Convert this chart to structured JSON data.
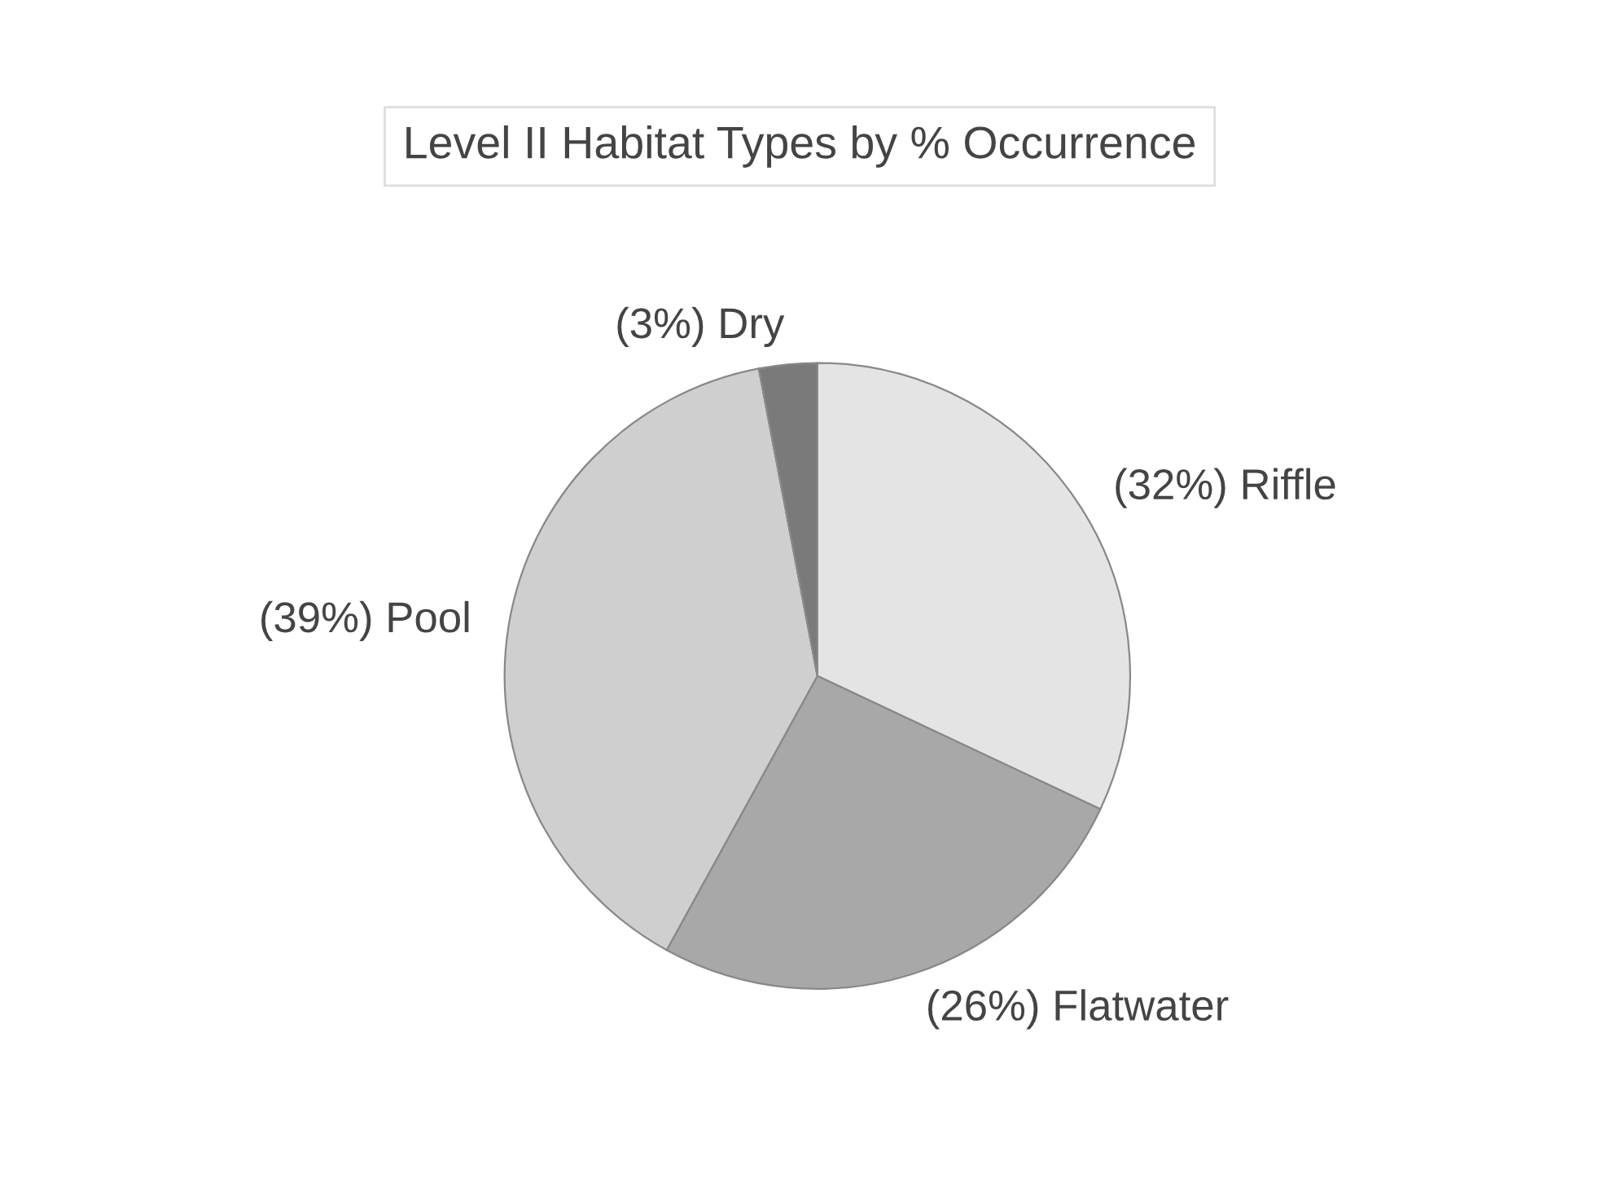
{
  "chart_data": {
    "type": "pie",
    "title": "Level II Habitat Types by % Occurrence",
    "categories": [
      "(32%) Riffle",
      "(26%) Flatwater",
      "(39%) Pool",
      "(3%) Dry"
    ],
    "values": [
      32,
      26,
      39,
      3
    ],
    "colors": [
      "#e4e4e4",
      "#a8a8a8",
      "#cfcfcf",
      "#7a7a7a"
    ]
  }
}
